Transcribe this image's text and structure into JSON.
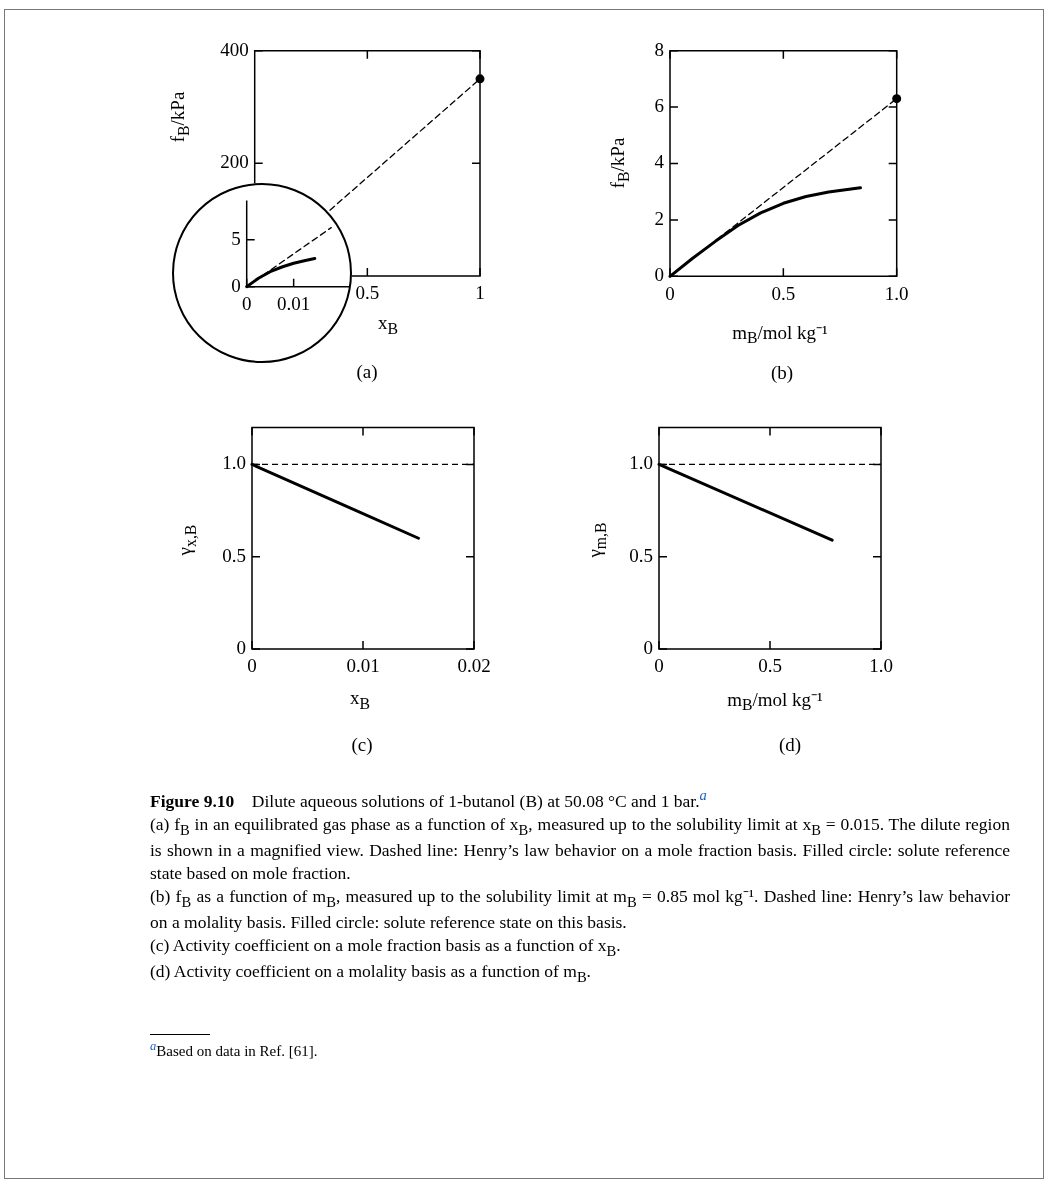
{
  "chart_data": [
    {
      "type": "line",
      "title": "(a)",
      "xlabel": "x$_{B}$",
      "ylabel": "f$_{B}$/kPa",
      "xlim": [
        0,
        1
      ],
      "xticks": [
        0.5,
        1
      ],
      "ylim": [
        0,
        400
      ],
      "yticks": [
        200,
        400
      ],
      "grid": false,
      "legend": false,
      "series": [
        {
          "type": "line",
          "color": "#000000",
          "line_style": "dashed",
          "marker": "none",
          "x": [
            0,
            1
          ],
          "values": [
            0,
            350
          ]
        },
        {
          "type": "scatter",
          "color": "#000000",
          "marker": "circle",
          "x": [
            1
          ],
          "values": [
            350
          ]
        }
      ]
    },
    {
      "type": "line",
      "xlim": [
        0,
        0.022
      ],
      "xticks": [
        0,
        0.01
      ],
      "ylim": [
        0,
        9.2
      ],
      "yticks": [
        0,
        5
      ],
      "grid": false,
      "legend": false,
      "series": [
        {
          "type": "line",
          "color": "#000000",
          "line_style": "solid",
          "marker": "none",
          "x": [
            0,
            0.0025,
            0.005,
            0.0075,
            0.01,
            0.0125,
            0.0145
          ],
          "values": [
            0,
            0.9,
            1.6,
            2.1,
            2.5,
            2.8,
            3.0
          ]
        },
        {
          "type": "line",
          "color": "#000000",
          "line_style": "dashed",
          "marker": "none",
          "x": [
            0,
            0.018
          ],
          "values": [
            0,
            6.3
          ]
        }
      ]
    },
    {
      "type": "line",
      "title": "(b)",
      "xlabel": "m$_{B}$/mol kg⁻¹",
      "ylabel": "f$_{B}$/kPa",
      "xlim": [
        0,
        1
      ],
      "xticks": [
        0,
        0.5,
        {
          "value": 1,
          "label": "1.0"
        }
      ],
      "ylim": [
        0,
        8
      ],
      "yticks": [
        0,
        2,
        4,
        6,
        8
      ],
      "grid": false,
      "legend": false,
      "series": [
        {
          "type": "line",
          "color": "#000000",
          "line_style": "solid",
          "marker": "none",
          "x": [
            0,
            0.1,
            0.2,
            0.3,
            0.4,
            0.5,
            0.6,
            0.7,
            0.84
          ],
          "values": [
            0,
            0.64,
            1.24,
            1.8,
            2.25,
            2.59,
            2.83,
            2.99,
            3.14
          ]
        },
        {
          "type": "line",
          "color": "#000000",
          "line_style": "dashed",
          "marker": "none",
          "x": [
            0,
            1
          ],
          "values": [
            0,
            6.3
          ]
        },
        {
          "type": "scatter",
          "color": "#000000",
          "marker": "circle",
          "x": [
            1
          ],
          "values": [
            6.3
          ]
        }
      ]
    },
    {
      "type": "line",
      "title": "(c)",
      "xlabel": "x$_{B}$",
      "ylabel": "γ$_{x,B}$",
      "xlim": [
        0,
        0.02
      ],
      "xticks": [
        0,
        0.01,
        0.02
      ],
      "ylim": [
        0,
        1.2
      ],
      "yticks": [
        0,
        0.5,
        {
          "value": 1,
          "label": "1.0"
        }
      ],
      "grid": false,
      "legend": false,
      "ref_lines": [
        {
          "axis": "y",
          "value": 1,
          "color": "#000000",
          "line_style": "dashed"
        }
      ],
      "series": [
        {
          "type": "line",
          "color": "#000000",
          "line_style": "solid",
          "marker": "none",
          "x": [
            0,
            0.015
          ],
          "values": [
            1,
            0.6
          ]
        }
      ]
    },
    {
      "type": "line",
      "title": "(d)",
      "xlabel": "m$_{B}$/mol kg⁻¹",
      "ylabel": "γ$_{m,B}$",
      "xlim": [
        0,
        1
      ],
      "xticks": [
        0,
        0.5,
        {
          "value": 1,
          "label": "1.0"
        }
      ],
      "ylim": [
        0,
        1.2
      ],
      "yticks": [
        0,
        0.5,
        {
          "value": 1,
          "label": "1.0"
        }
      ],
      "grid": false,
      "legend": false,
      "ref_lines": [
        {
          "axis": "y",
          "value": 1,
          "color": "#000000",
          "line_style": "dashed"
        }
      ],
      "series": [
        {
          "type": "line",
          "color": "#000000",
          "line_style": "solid",
          "marker": "none",
          "x": [
            0,
            0.78
          ],
          "values": [
            1,
            0.59
          ]
        }
      ]
    },
    {
      "type": "other",
      "title": "Figure 9.10",
      "annotations": [
        "Dilute aqueous solutions of 1-butanol (B) at 50.08 °C and 1 bar.$^{a}$",
        "(a) f$_{B}$ in an equilibrated gas phase as a function of x$_{B}$, measured up to the solubility limit at x$_{B}$ = 0.015. The dilute region is shown in a magnified view. Dashed line: Henry’s law behavior on a mole fraction basis. Filled circle: solute reference state based on mole fraction.",
        "(b) f$_{B}$ as a function of m$_{B}$, measured up to the solubility limit at m$_{B}$ = 0.85 mol kg⁻¹. Dashed line: Henry’s law behavior on a molality basis. Filled circle: solute reference state on this basis.",
        "(c) Activity coefficient on a mole fraction basis as a function of x$_{B}$.",
        "(d) Activity coefficient on a molality basis as a function of m$_{B}$.",
        "$^{a}$Based on data in Ref. [61]."
      ]
    }
  ]
}
